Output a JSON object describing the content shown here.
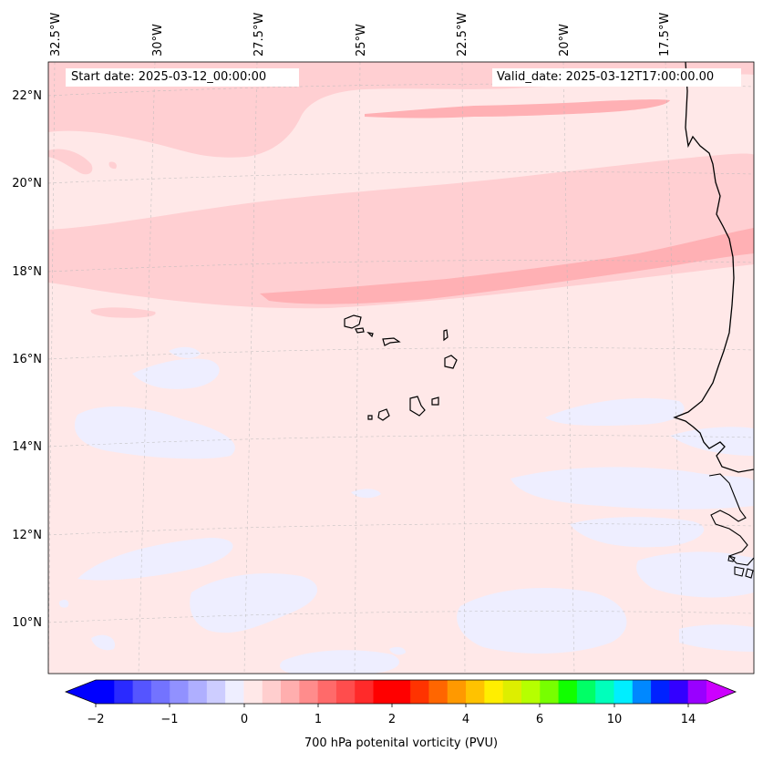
{
  "map": {
    "start_date": "Start date: 2025-03-12_00:00:00",
    "valid_date": "Valid_date: 2025-03-12T17:00:00.00",
    "lon_labels": [
      "32.5°W",
      "30°W",
      "27.5°W",
      "25°W",
      "22.5°W",
      "20°W",
      "17.5°W"
    ],
    "lat_labels": [
      "22°N",
      "20°N",
      "18°N",
      "16°N",
      "14°N",
      "12°N",
      "10°N"
    ],
    "region": "Eastern Atlantic / Cape Verde Islands and West African coast"
  },
  "colorbar": {
    "title": "700 hPa potenital vorticity (PVU)",
    "tick_labels": [
      "−2",
      "−1",
      "0",
      "1",
      "2",
      "4",
      "6",
      "10",
      "14"
    ],
    "colors": [
      "#0000ff",
      "#2a2aff",
      "#5555ff",
      "#7373ff",
      "#9191ff",
      "#afafff",
      "#cdcdff",
      "#eeeeff",
      "#ffe8e8",
      "#ffcece",
      "#ffaeae",
      "#ff8c8c",
      "#ff6a6a",
      "#ff4d4d",
      "#ff2a2a",
      "#ff0000",
      "#ff0000",
      "#ff3300",
      "#ff6600",
      "#ff9900",
      "#ffc200",
      "#ffee00",
      "#ddee00",
      "#b6ff00",
      "#77ff00",
      "#11ff00",
      "#00ff66",
      "#00ffbb",
      "#00eeff",
      "#0088ff",
      "#0022ff",
      "#3300ff",
      "#9900ff"
    ],
    "min_arrow_color": "#0000ff",
    "max_arrow_color": "#cc00ff"
  },
  "fill_colors": {
    "background": "#ffe8e8",
    "light": "#ffcfd2",
    "medium": "#ffb0b4",
    "negative": "#eeeeff"
  }
}
